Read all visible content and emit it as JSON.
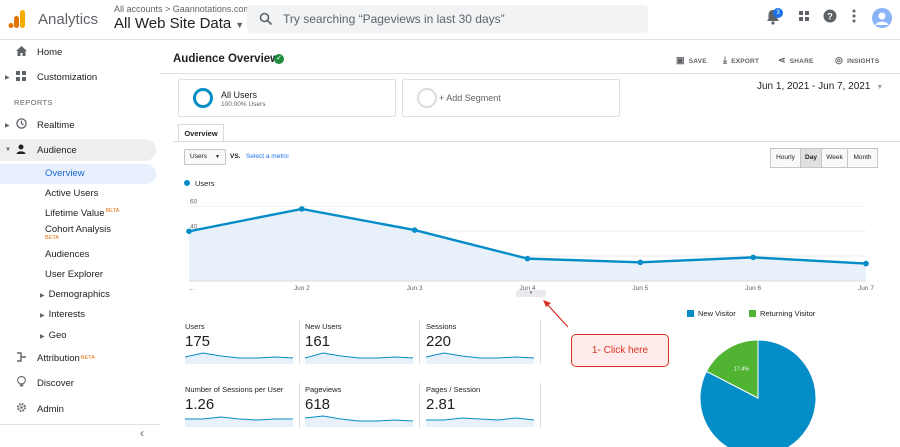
{
  "header": {
    "app_name": "Analytics",
    "account_crumb": "All accounts > Gaannotations.com",
    "property_title": "All Web Site Data",
    "search_placeholder": "Try searching “Pageviews in last 30 days”",
    "notification_count": "3",
    "icons": [
      "analytics-logo-icon",
      "search-icon",
      "bell-icon",
      "apps-grid-icon",
      "help-icon",
      "more-vert-icon",
      "account-avatar-icon"
    ]
  },
  "sidebar": {
    "home": "Home",
    "customization": "Customization",
    "reports_label": "REPORTS",
    "realtime": "Realtime",
    "audience": "Audience",
    "audience_sub": {
      "overview": "Overview",
      "active_users": "Active Users",
      "lifetime_value": "Lifetime Value",
      "cohort_analysis": "Cohort Analysis",
      "audiences": "Audiences",
      "user_explorer": "User Explorer",
      "demographics": "Demographics",
      "interests": "Interests",
      "geo": "Geo"
    },
    "beta": "BETA",
    "attribution": "Attribution",
    "discover": "Discover",
    "admin": "Admin",
    "collapse": "‹"
  },
  "main": {
    "title": "Audience Overview",
    "toolbar": {
      "save": "SAVE",
      "export": "EXPORT",
      "share": "SHARE",
      "insights": "INSIGHTS"
    },
    "segments": {
      "all_users": "All Users",
      "all_users_pct": "100.00% Users",
      "add_segment": "+ Add Segment"
    },
    "date_range": "Jun 1, 2021 - Jun 7, 2021",
    "tab_overview": "Overview",
    "metric_selector": "Users",
    "vs": "VS.",
    "select_metric": "Select a metric",
    "granularity": [
      "Hourly",
      "Day",
      "Week",
      "Month"
    ],
    "granularity_selected": "Day",
    "kpis": [
      {
        "label": "Users",
        "value": "175"
      },
      {
        "label": "New Users",
        "value": "161"
      },
      {
        "label": "Sessions",
        "value": "220"
      },
      {
        "label": "Number of Sessions per User",
        "value": "1.26"
      },
      {
        "label": "Pageviews",
        "value": "618"
      },
      {
        "label": "Pages / Session",
        "value": "2.81"
      }
    ],
    "callout": "1- Click here"
  },
  "chart_data": [
    {
      "type": "area",
      "series": [
        {
          "name": "Users",
          "values": [
            40,
            58,
            41,
            18,
            15,
            19,
            14
          ]
        }
      ],
      "categories": [
        "...",
        "Jun 2",
        "Jun 3",
        "Jun 4",
        "Jun 5",
        "Jun 6",
        "Jun 7"
      ],
      "yticks": [
        20,
        40,
        60
      ],
      "ylim": [
        0,
        70
      ],
      "color": "#058dc7",
      "grid": true
    },
    {
      "type": "pie",
      "categories": [
        "New Visitor",
        "Returning Visitor"
      ],
      "values": [
        82.6,
        17.4
      ],
      "labels": [
        "82.6%",
        "17.4%"
      ],
      "colors": [
        "#058dc7",
        "#50b432"
      ],
      "legend": "top"
    }
  ]
}
